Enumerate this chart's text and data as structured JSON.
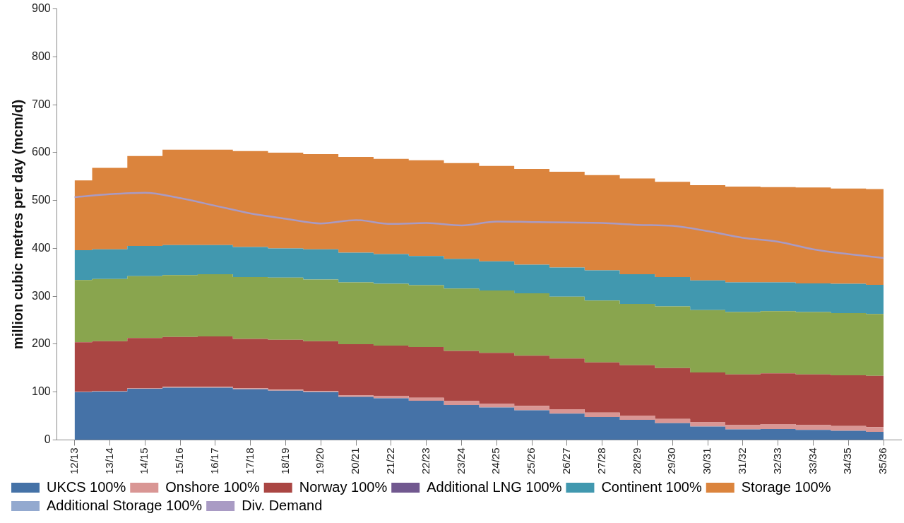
{
  "chart_data": {
    "type": "area",
    "stacked": true,
    "line_style": "solid",
    "marker": "none",
    "grid": false,
    "legend": "bottom",
    "ylabel": "million cubic metres per day (mcm/d)",
    "categories": [
      "12/13",
      "13/14",
      "14/15",
      "15/16",
      "16/17",
      "17/18",
      "18/19",
      "19/20",
      "20/21",
      "21/22",
      "22/23",
      "23/24",
      "24/25",
      "25/26",
      "26/27",
      "27/28",
      "28/29",
      "29/30",
      "30/31",
      "31/32",
      "32/33",
      "33/34",
      "34/35",
      "35/36"
    ],
    "ylim": [
      0,
      900
    ],
    "yticks": [
      0,
      100,
      200,
      300,
      400,
      500,
      600,
      700,
      800,
      900
    ],
    "series": [
      {
        "name": "UKCS 100%",
        "color": "#4572a7",
        "values": [
          100,
          101,
          107,
          109,
          109,
          106,
          103,
          100,
          90,
          87,
          82,
          73,
          68,
          62,
          55,
          48,
          42,
          35,
          28,
          22,
          23,
          21,
          19,
          17
        ]
      },
      {
        "name": "Onshore 100%",
        "color": "#d99694",
        "values": [
          1,
          1,
          1,
          2,
          2,
          2,
          2,
          2,
          3,
          5,
          6,
          8,
          8,
          9,
          9,
          9,
          9,
          9,
          9,
          9,
          10,
          10,
          10,
          10
        ]
      },
      {
        "name": "Norway 100%",
        "color": "#aa4643",
        "values": [
          103,
          104,
          105,
          104,
          105,
          103,
          104,
          104,
          107,
          105,
          106,
          105,
          106,
          105,
          106,
          105,
          105,
          106,
          104,
          106,
          106,
          106,
          106,
          107
        ]
      },
      {
        "color": "#89a54e",
        "values": [
          130,
          130,
          129,
          129,
          130,
          129,
          130,
          129,
          129,
          129,
          129,
          130,
          130,
          130,
          129,
          129,
          128,
          129,
          130,
          130,
          130,
          130,
          130,
          129
        ]
      },
      {
        "name": "Additional LNG 100%",
        "color": "#71588f",
        "values": [
          null,
          null,
          null,
          null,
          null,
          null,
          null,
          null,
          null,
          null,
          null,
          null,
          null,
          null,
          null,
          null,
          null,
          null,
          null,
          null,
          null,
          null,
          null,
          null
        ]
      },
      {
        "name": "Continent 100%",
        "color": "#4198af",
        "values": [
          62,
          62,
          63,
          63,
          61,
          63,
          61,
          63,
          62,
          62,
          61,
          62,
          61,
          60,
          61,
          63,
          62,
          61,
          62,
          62,
          60,
          60,
          61,
          61
        ]
      },
      {
        "name": "Storage 100%",
        "color": "#db843d",
        "values": [
          146,
          170,
          188,
          199,
          199,
          200,
          200,
          199,
          200,
          199,
          200,
          200,
          199,
          200,
          200,
          199,
          200,
          199,
          199,
          200,
          199,
          200,
          199,
          200
        ]
      },
      {
        "name": "Additional Storage 100%",
        "color": "#93a9cf",
        "values": [
          null,
          null,
          null,
          null,
          null,
          null,
          null,
          null,
          null,
          null,
          null,
          null,
          null,
          null,
          null,
          null,
          null,
          null,
          null,
          null,
          null,
          null,
          null,
          null
        ]
      },
      {
        "name": "Div. Demand",
        "type": "line",
        "color": "#a99bc4",
        "values": [
          507,
          513,
          516,
          505,
          489,
          473,
          462,
          452,
          459,
          451,
          453,
          448,
          456,
          455,
          454,
          453,
          449,
          447,
          436,
          422,
          414,
          398,
          388,
          380
        ]
      }
    ]
  }
}
